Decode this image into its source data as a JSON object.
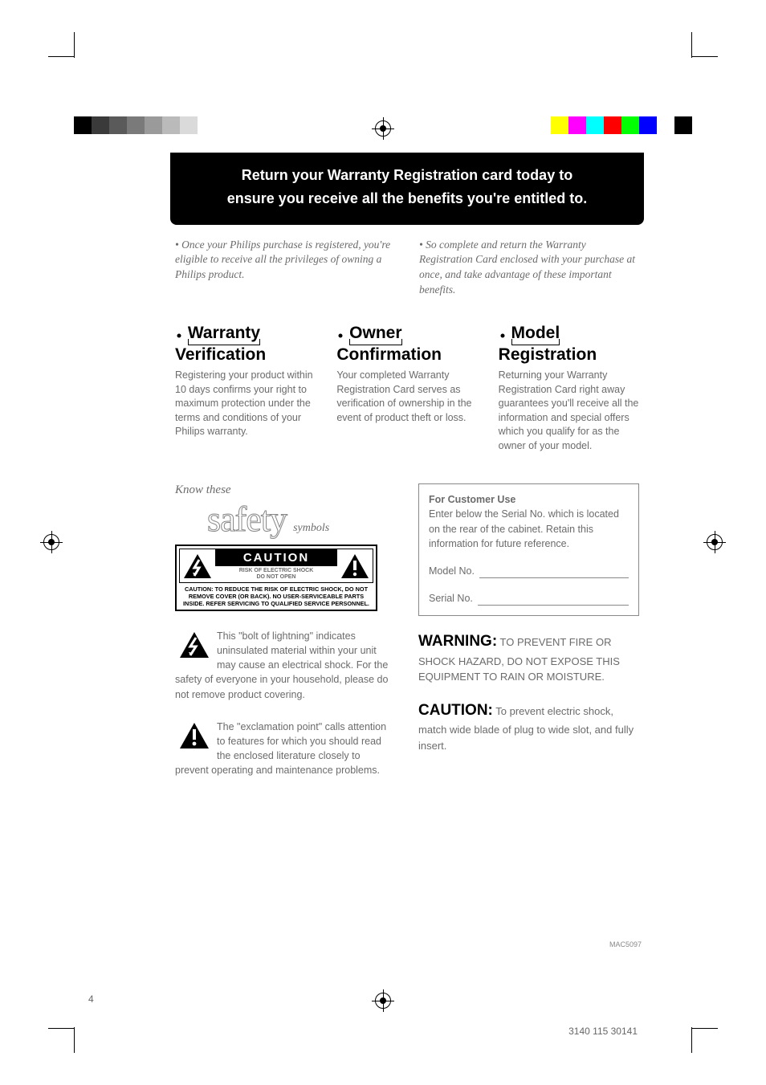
{
  "page_number": "4",
  "mac_code": "MAC5097",
  "doc_number": "3140 115 30141",
  "header_line1": "Return your Warranty Registration card today to",
  "header_line2": "ensure you receive all the benefits you're entitled to.",
  "intro_left": "• Once your Philips purchase is registered, you're eligible to receive all the privileges of owning a Philips product.",
  "intro_right": "• So complete and return the Warranty Registration Card enclosed with your purchase at once, and take advantage of these important benefits.",
  "benefits": [
    {
      "top": "Warranty",
      "bottom": "Verification",
      "body": "Registering your product within 10 days confirms your right to maximum protection under the terms and conditions of your Philips warranty."
    },
    {
      "top": "Owner",
      "bottom": "Confirmation",
      "body": "Your completed Warranty Registration Card serves as verification of ownership in the event of product theft or loss."
    },
    {
      "top": "Model",
      "bottom": "Registration",
      "body": "Returning your Warranty Registration Card right away guarantees you'll receive all the information and special offers which you qualify for as the owner of your model."
    }
  ],
  "know_these": "Know these",
  "safety_word": "safety",
  "symbols_word": "symbols",
  "caution_big": "CAUTION",
  "caution_small1": "RISK OF ELECTRIC SHOCK",
  "caution_small2": "DO NOT OPEN",
  "caution_foot": "CAUTION: TO REDUCE THE RISK OF ELECTRIC SHOCK, DO NOT REMOVE COVER (OR BACK). NO USER-SERVICEABLE PARTS INSIDE. REFER SERVICING TO QUALIFIED SERVICE PERSONNEL.",
  "bolt_para": "This \"bolt of lightning\" indicates uninsulated material within your unit may cause an electrical shock. For the safety of everyone in your household, please do not remove product covering.",
  "excl_para": "The \"exclamation point\" calls attention to features for which you should read the enclosed literature closely to prevent operating and maintenance problems.",
  "customer_use_hd": "For Customer Use",
  "customer_use_body": "Enter below the Serial No. which is located on the rear of the cabinet. Retain this information for future reference.",
  "model_no_label": "Model No.",
  "serial_no_label": "Serial No.",
  "warning_lead": "WARNING:",
  "warning_body": " TO PREVENT FIRE OR SHOCK HAZARD, DO NOT EXPOSE THIS EQUIPMENT TO RAIN OR MOISTURE.",
  "caution_lead": "CAUTION:",
  "caution_body": " To prevent electric shock, match wide blade of plug to wide slot, and fully insert.",
  "colorbar_left": [
    "#000000",
    "#3a3a3a",
    "#5a5a5a",
    "#7a7a7a",
    "#9a9a9a",
    "#bababa",
    "#dadada",
    "#ffffff"
  ],
  "colorbar_right": [
    "#ffff00",
    "#ff00ff",
    "#00ffff",
    "#ff0000",
    "#00ff00",
    "#0000ff",
    "#ffffff",
    "#000000"
  ]
}
